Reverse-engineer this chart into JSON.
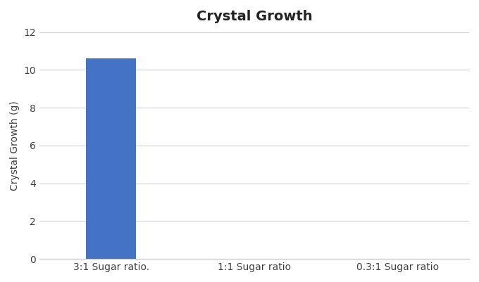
{
  "title": "Crystal Growth",
  "categories": [
    "3:1 Sugar ratio.",
    "1:1 Sugar ratio",
    "0.3:1 Sugar ratio"
  ],
  "values": [
    10.6,
    0,
    0
  ],
  "bar_color": "#4472C4",
  "ylabel": "Crystal Growth (g)",
  "ylim": [
    0,
    12
  ],
  "yticks": [
    0,
    2,
    4,
    6,
    8,
    10,
    12
  ],
  "title_fontsize": 14,
  "title_fontweight": "bold",
  "ylabel_fontsize": 10,
  "xtick_fontsize": 10,
  "ytick_fontsize": 10,
  "background_color": "#FFFFFF",
  "grid_color": "#D0D0D0",
  "bar_width": 0.35
}
